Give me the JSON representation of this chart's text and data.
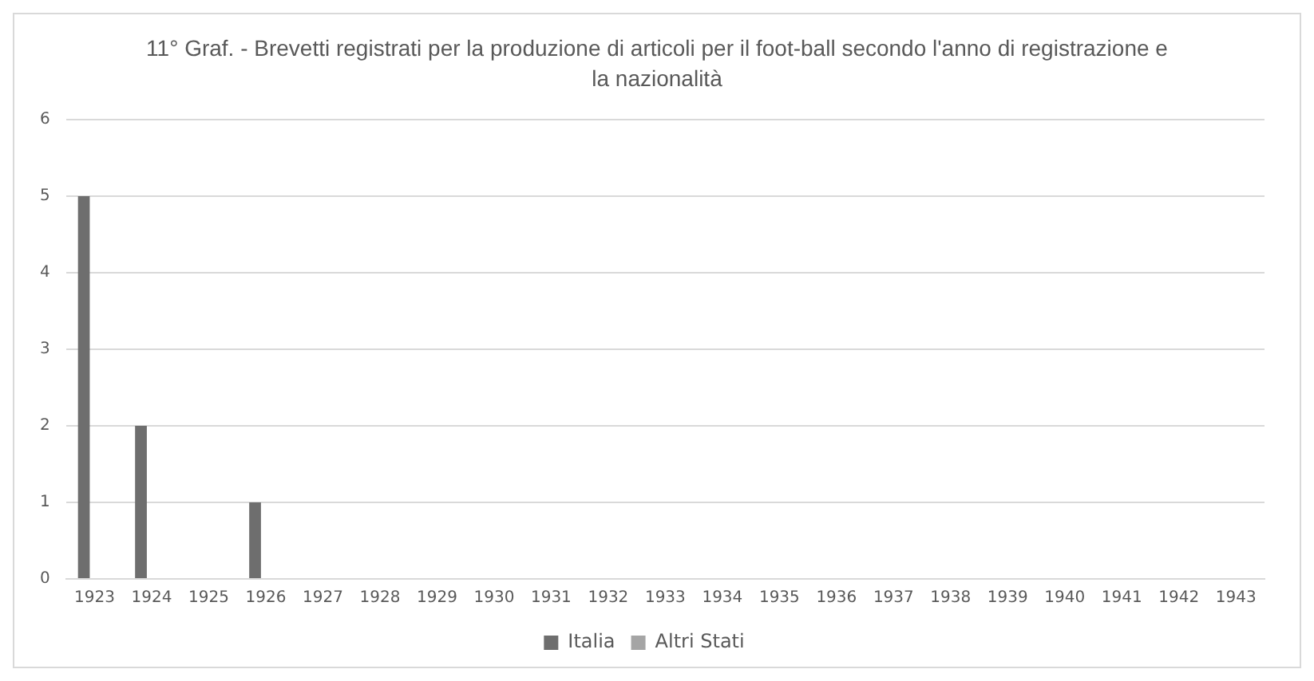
{
  "chart_data": {
    "type": "bar",
    "title": "11° Graf. - Brevetti registrati per la produzione di articoli per il foot-ball secondo l'anno di registrazione e la nazionalità",
    "categories": [
      "1923",
      "1924",
      "1925",
      "1926",
      "1927",
      "1928",
      "1929",
      "1930",
      "1931",
      "1932",
      "1933",
      "1934",
      "1935",
      "1936",
      "1937",
      "1938",
      "1939",
      "1940",
      "1941",
      "1942",
      "1943"
    ],
    "series": [
      {
        "name": "Italia",
        "color": "#6e6e6e",
        "values": [
          5,
          2,
          0,
          1,
          0,
          0,
          0,
          0,
          0,
          0,
          0,
          0,
          0,
          0,
          0,
          0,
          0,
          0,
          0,
          0,
          0
        ]
      },
      {
        "name": "Altri Stati",
        "color": "#a5a5a5",
        "values": [
          0,
          0,
          0,
          0,
          0,
          0,
          0,
          0,
          0,
          0,
          0,
          0,
          0,
          0,
          0,
          0,
          0,
          0,
          0,
          0,
          0
        ]
      }
    ],
    "ylim": [
      0,
      6
    ],
    "yticks": [
      0,
      1,
      2,
      3,
      4,
      5,
      6
    ],
    "grid": "y",
    "legend": "bottom"
  }
}
